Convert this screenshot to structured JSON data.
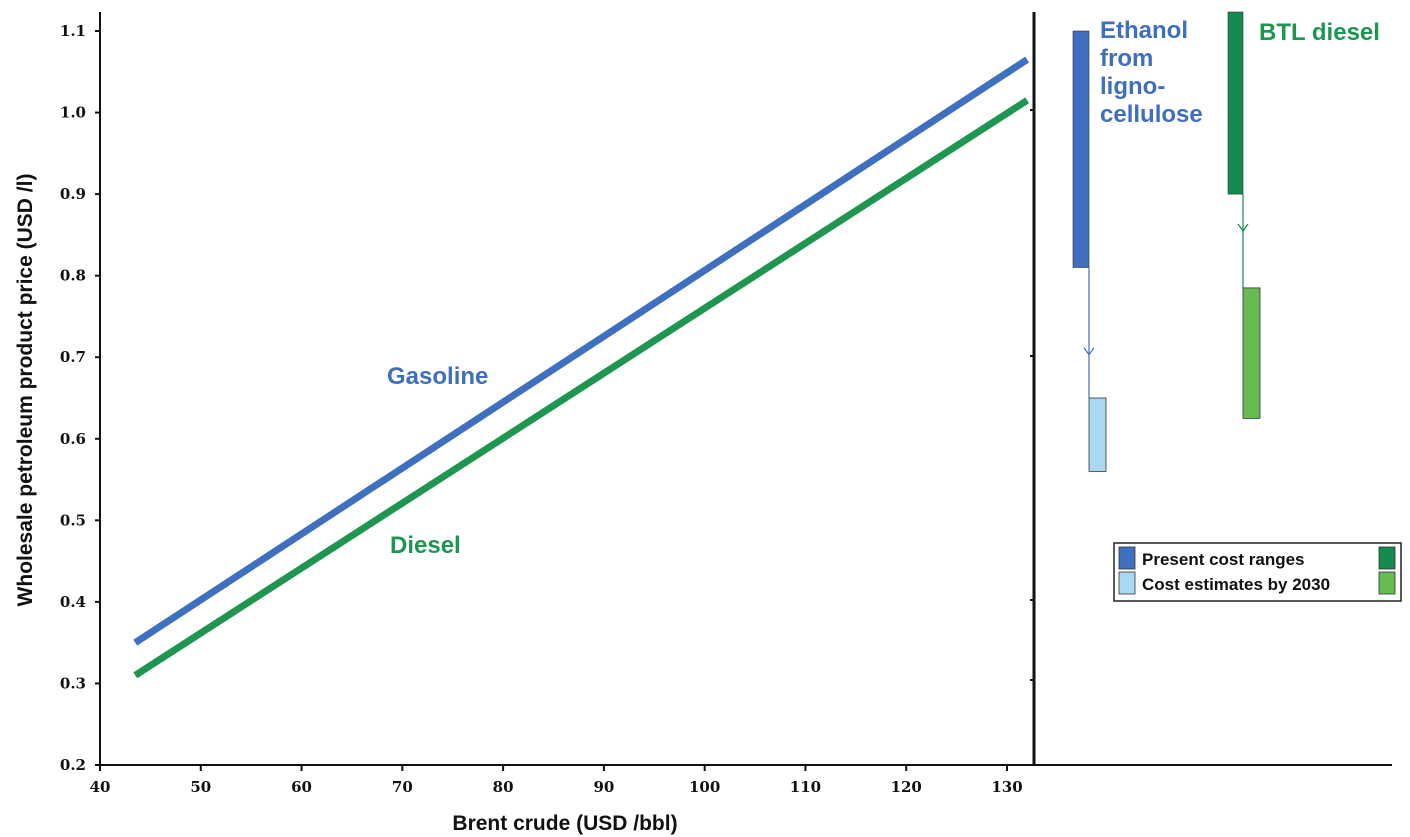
{
  "chart_data": {
    "type": "line",
    "xlabel": "Brent crude  (USD /bbl)",
    "ylabel": "Wholesale petroleum product price  (USD /l)",
    "xlim": [
      40,
      132
    ],
    "ylim": [
      0.2,
      1.15
    ],
    "xticks": [
      40,
      50,
      60,
      70,
      80,
      90,
      100,
      110,
      120,
      130
    ],
    "yticks": [
      0.2,
      0.3,
      0.4,
      0.5,
      0.6,
      0.7,
      0.8,
      0.9,
      1.0,
      1.1
    ],
    "series": [
      {
        "name": "Gasoline",
        "color": "#3F6FBF",
        "x": [
          43.5,
          132
        ],
        "y": [
          0.35,
          1.065
        ]
      },
      {
        "name": "Diesel",
        "color": "#1E9650",
        "x": [
          43.5,
          132
        ],
        "y": [
          0.31,
          1.015
        ]
      }
    ],
    "cost_ranges": [
      {
        "name": "Ethanol from ligno-cellulose",
        "label_lines": [
          "Ethanol",
          "from",
          "ligno-",
          "cellulose"
        ],
        "label_color": "#3F6FBF",
        "present": {
          "low": 0.81,
          "high": 1.1,
          "color": "#3F6FBF"
        },
        "by_2030": {
          "low": 0.56,
          "high": 0.65,
          "color": "#A9D8F0"
        }
      },
      {
        "name": "BTL diesel",
        "label_lines": [
          "BTL diesel"
        ],
        "label_color": "#1E9650",
        "present": {
          "low": 0.9,
          "high": 1.15,
          "color": "#138A4E"
        },
        "by_2030": {
          "low": 0.625,
          "high": 0.785,
          "color": "#66BB55"
        }
      }
    ],
    "legend": {
      "placement": "lower-right",
      "entries": [
        {
          "label": "Present cost ranges",
          "colors": [
            "#3F6FBF",
            "#138A4E"
          ]
        },
        {
          "label": "Cost estimates by 2030",
          "colors": [
            "#A9D8F0",
            "#66BB55"
          ]
        }
      ]
    },
    "grid": false
  }
}
